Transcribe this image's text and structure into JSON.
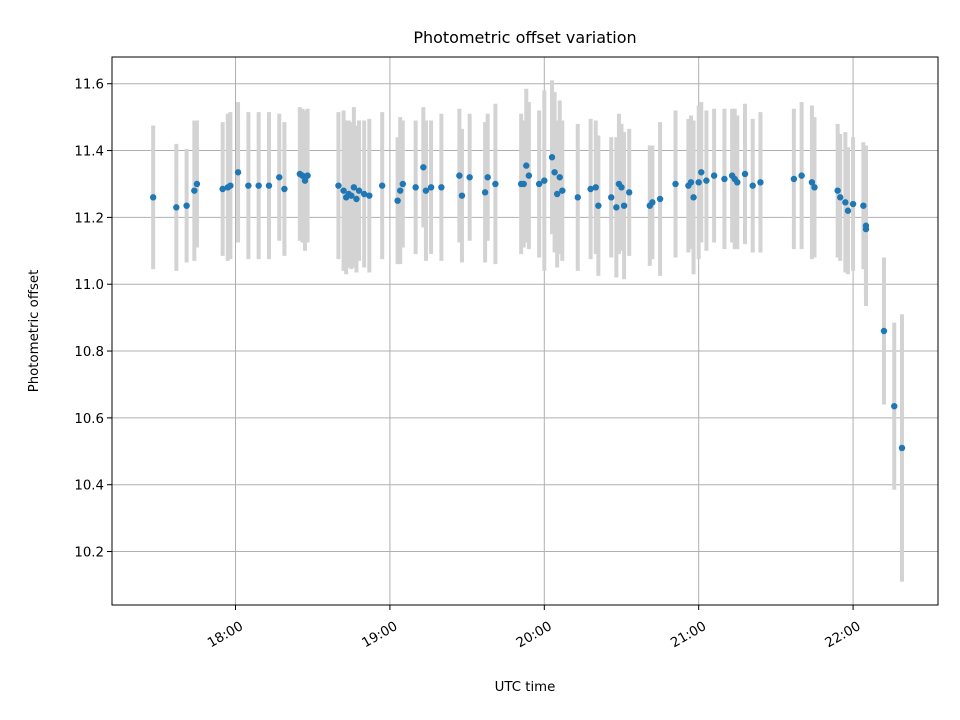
{
  "chart_data": {
    "type": "scatter",
    "title": "Photometric offset variation",
    "xlabel": "UTC time",
    "ylabel": "Photometric offset",
    "xlim": [
      "17:12",
      "22:33"
    ],
    "ylim": [
      10.04,
      11.68
    ],
    "xticks": [
      "18:00",
      "19:00",
      "20:00",
      "21:00",
      "22:00"
    ],
    "yticks": [
      10.2,
      10.4,
      10.6,
      10.8,
      11.0,
      11.2,
      11.4,
      11.6
    ],
    "grid": true,
    "colors": {
      "point": "#1f77b4",
      "errorbar": "#d3d3d3"
    },
    "series": [
      {
        "x": [
          "17:28",
          "17:37",
          "17:41",
          "17:44",
          "17:45",
          "17:55",
          "17:57",
          "17:58",
          "18:01",
          "18:05",
          "18:09",
          "18:13",
          "18:17",
          "18:19",
          "18:25",
          "18:26",
          "18:27",
          "18:28",
          "18:40",
          "18:42",
          "18:43",
          "18:44",
          "18:45",
          "18:46",
          "18:47",
          "18:48",
          "18:50",
          "18:52",
          "18:57",
          "19:03",
          "19:04",
          "19:05",
          "19:10",
          "19:13",
          "19:14",
          "19:16",
          "19:20",
          "19:27",
          "19:28",
          "19:31",
          "19:37",
          "19:38",
          "19:41",
          "19:51",
          "19:52",
          "19:53",
          "19:54",
          "19:58",
          "20:00",
          "20:03",
          "20:04",
          "20:05",
          "20:06",
          "20:07",
          "20:13",
          "20:18",
          "20:20",
          "20:21",
          "20:26",
          "20:28",
          "20:29",
          "20:30",
          "20:31",
          "20:33",
          "20:41",
          "20:42",
          "20:45",
          "20:51",
          "20:56",
          "20:57",
          "20:58",
          "21:00",
          "21:01",
          "21:03",
          "21:06",
          "21:10",
          "21:13",
          "21:14",
          "21:15",
          "21:18",
          "21:21",
          "21:24",
          "21:37",
          "21:40",
          "21:44",
          "21:45",
          "21:54",
          "21:55",
          "21:57",
          "21:58",
          "22:00",
          "22:04",
          "22:05",
          "22:05",
          "22:12",
          "22:16",
          "22:19"
        ],
        "y": [
          11.26,
          11.23,
          11.235,
          11.28,
          11.3,
          11.285,
          11.29,
          11.295,
          11.335,
          11.295,
          11.295,
          11.295,
          11.32,
          11.285,
          11.33,
          11.325,
          11.31,
          11.325,
          11.295,
          11.28,
          11.26,
          11.27,
          11.265,
          11.29,
          11.255,
          11.28,
          11.27,
          11.265,
          11.295,
          11.25,
          11.28,
          11.3,
          11.29,
          11.35,
          11.28,
          11.29,
          11.29,
          11.325,
          11.265,
          11.32,
          11.275,
          11.32,
          11.3,
          11.3,
          11.3,
          11.355,
          11.325,
          11.3,
          11.31,
          11.38,
          11.335,
          11.27,
          11.32,
          11.28,
          11.26,
          11.285,
          11.29,
          11.235,
          11.26,
          11.23,
          11.3,
          11.29,
          11.235,
          11.275,
          11.235,
          11.245,
          11.255,
          11.3,
          11.295,
          11.305,
          11.26,
          11.305,
          11.335,
          11.31,
          11.325,
          11.315,
          11.325,
          11.315,
          11.305,
          11.33,
          11.295,
          11.305,
          11.315,
          11.325,
          11.305,
          11.29,
          11.28,
          11.26,
          11.245,
          11.22,
          11.24,
          11.235,
          11.165,
          11.175,
          10.86,
          10.635,
          10.51
        ],
        "yerr": [
          0.215,
          0.19,
          0.17,
          0.21,
          0.19,
          0.2,
          0.22,
          0.22,
          0.21,
          0.22,
          0.22,
          0.22,
          0.19,
          0.2,
          0.2,
          0.2,
          0.21,
          0.2,
          0.22,
          0.24,
          0.23,
          0.22,
          0.22,
          0.24,
          0.22,
          0.21,
          0.22,
          0.23,
          0.22,
          0.19,
          0.22,
          0.19,
          0.2,
          0.18,
          0.21,
          0.2,
          0.22,
          0.2,
          0.2,
          0.19,
          0.21,
          0.19,
          0.24,
          0.21,
          0.19,
          0.23,
          0.22,
          0.22,
          0.27,
          0.23,
          0.24,
          0.22,
          0.23,
          0.21,
          0.22,
          0.21,
          0.2,
          0.21,
          0.18,
          0.21,
          0.21,
          0.19,
          0.22,
          0.19,
          0.18,
          0.17,
          0.23,
          0.22,
          0.2,
          0.2,
          0.23,
          0.23,
          0.21,
          0.21,
          0.2,
          0.21,
          0.2,
          0.21,
          0.2,
          0.21,
          0.2,
          0.21,
          0.21,
          0.22,
          0.23,
          0.21,
          0.2,
          0.19,
          0.21,
          0.19,
          0.2,
          0.19,
          0.21,
          0.24,
          0.22,
          0.25,
          0.4
        ]
      }
    ]
  }
}
